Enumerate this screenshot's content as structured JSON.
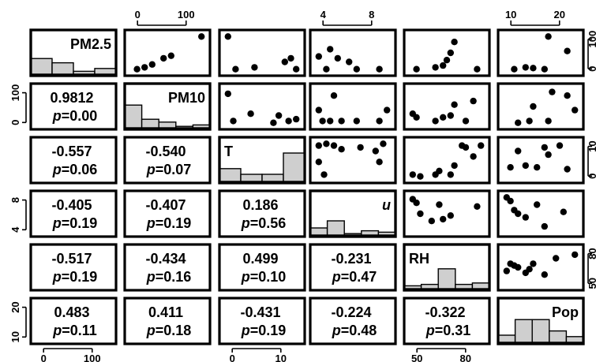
{
  "chart_data": {
    "type": "scatter-matrix",
    "variables": [
      "PM2.5",
      "PM10",
      "T",
      "u",
      "RH",
      "Pop"
    ],
    "variable_label_styles": {
      "u": "italic"
    },
    "correlations": [
      {
        "row": "PM10",
        "col": "PM2.5",
        "r": "0.9812",
        "p": "0.00"
      },
      {
        "row": "T",
        "col": "PM2.5",
        "r": "-0.557",
        "p": "0.06"
      },
      {
        "row": "T",
        "col": "PM10",
        "r": "-0.540",
        "p": "0.07"
      },
      {
        "row": "u",
        "col": "PM2.5",
        "r": "-0.405",
        "p": "0.19"
      },
      {
        "row": "u",
        "col": "PM10",
        "r": "-0.407",
        "p": "0.19"
      },
      {
        "row": "u",
        "col": "T",
        "r": "0.186",
        "p": "0.56"
      },
      {
        "row": "RH",
        "col": "PM2.5",
        "r": "-0.517",
        "p": "0.19"
      },
      {
        "row": "RH",
        "col": "PM10",
        "r": "-0.434",
        "p": "0.16"
      },
      {
        "row": "RH",
        "col": "T",
        "r": "0.499",
        "p": "0.10"
      },
      {
        "row": "RH",
        "col": "u",
        "r": "-0.231",
        "p": "0.47"
      },
      {
        "row": "Pop",
        "col": "PM2.5",
        "r": "0.483",
        "p": "0.11"
      },
      {
        "row": "Pop",
        "col": "PM10",
        "r": "0.411",
        "p": "0.18"
      },
      {
        "row": "Pop",
        "col": "T",
        "r": "-0.431",
        "p": "0.19"
      },
      {
        "row": "Pop",
        "col": "u",
        "r": "-0.224",
        "p": "0.48"
      },
      {
        "row": "Pop",
        "col": "RH",
        "r": "-0.322",
        "p": "0.31"
      }
    ],
    "p_prefix": "p",
    "histograms": {
      "PM2.5": [
        0.55,
        0.4,
        0.1,
        0.2
      ],
      "PM10": [
        0.8,
        0.3,
        0.2,
        0.05,
        0.1
      ],
      "T": [
        0.45,
        0.25,
        0.25,
        1.0
      ],
      "u": [
        0.25,
        0.5,
        0.05,
        0.15,
        0.1
      ],
      "RH": [
        0.1,
        0.15,
        0.7,
        0.15,
        0.2
      ],
      "Pop": [
        0.25,
        0.8,
        0.8,
        0.4,
        0.2
      ]
    },
    "scatter": {
      "PM2.5|PM10": [
        [
          0.1,
          0.05
        ],
        [
          0.2,
          0.1
        ],
        [
          0.3,
          0.18
        ],
        [
          0.45,
          0.35
        ],
        [
          0.55,
          0.42
        ],
        [
          0.95,
          0.95
        ]
      ],
      "PM2.5|T": [
        [
          0.05,
          0.95
        ],
        [
          0.15,
          0.05
        ],
        [
          0.4,
          0.1
        ],
        [
          0.8,
          0.25
        ],
        [
          0.88,
          0.35
        ],
        [
          0.95,
          0.05
        ]
      ],
      "PM2.5|u": [
        [
          0.05,
          0.4
        ],
        [
          0.15,
          0.05
        ],
        [
          0.2,
          0.6
        ],
        [
          0.3,
          0.35
        ],
        [
          0.45,
          0.25
        ],
        [
          0.55,
          0.05
        ],
        [
          0.85,
          0.05
        ]
      ],
      "PM2.5|RH": [
        [
          0.1,
          0.05
        ],
        [
          0.35,
          0.1
        ],
        [
          0.45,
          0.15
        ],
        [
          0.5,
          0.3
        ],
        [
          0.55,
          0.5
        ],
        [
          0.6,
          0.8
        ],
        [
          0.9,
          0.05
        ]
      ],
      "PM2.5|Pop": [
        [
          0.15,
          0.05
        ],
        [
          0.3,
          0.1
        ],
        [
          0.4,
          0.08
        ],
        [
          0.55,
          0.05
        ],
        [
          0.6,
          0.95
        ],
        [
          0.85,
          0.55
        ]
      ],
      "PM10|T": [
        [
          0.05,
          0.85
        ],
        [
          0.12,
          0.1
        ],
        [
          0.35,
          0.3
        ],
        [
          0.65,
          0.05
        ],
        [
          0.72,
          0.25
        ],
        [
          0.85,
          0.1
        ],
        [
          0.95,
          0.15
        ]
      ],
      "PM10|u": [
        [
          0.05,
          0.4
        ],
        [
          0.1,
          0.1
        ],
        [
          0.2,
          0.1
        ],
        [
          0.25,
          0.8
        ],
        [
          0.35,
          0.1
        ],
        [
          0.55,
          0.1
        ],
        [
          0.85,
          0.1
        ],
        [
          0.95,
          0.4
        ]
      ],
      "PM10|RH": [
        [
          0.05,
          0.3
        ],
        [
          0.1,
          0.2
        ],
        [
          0.35,
          0.1
        ],
        [
          0.45,
          0.2
        ],
        [
          0.55,
          0.25
        ],
        [
          0.6,
          0.55
        ],
        [
          0.75,
          0.1
        ],
        [
          0.85,
          0.65
        ]
      ],
      "PM10|Pop": [
        [
          0.2,
          0.05
        ],
        [
          0.35,
          0.1
        ],
        [
          0.4,
          0.5
        ],
        [
          0.6,
          0.1
        ],
        [
          0.65,
          0.9
        ],
        [
          0.85,
          0.8
        ],
        [
          0.95,
          0.4
        ]
      ],
      "T|u": [
        [
          0.05,
          0.9
        ],
        [
          0.05,
          0.45
        ],
        [
          0.12,
          0.1
        ],
        [
          0.15,
          0.95
        ],
        [
          0.25,
          0.9
        ],
        [
          0.35,
          0.8
        ],
        [
          0.6,
          0.85
        ],
        [
          0.8,
          0.75
        ],
        [
          0.85,
          0.45
        ],
        [
          0.9,
          0.95
        ]
      ],
      "T|RH": [
        [
          0.05,
          0.1
        ],
        [
          0.15,
          0.05
        ],
        [
          0.35,
          0.1
        ],
        [
          0.4,
          0.2
        ],
        [
          0.55,
          0.1
        ],
        [
          0.6,
          0.35
        ],
        [
          0.7,
          0.9
        ],
        [
          0.75,
          0.85
        ],
        [
          0.85,
          0.6
        ],
        [
          0.95,
          0.9
        ]
      ],
      "T|Pop": [
        [
          0.1,
          0.3
        ],
        [
          0.2,
          0.75
        ],
        [
          0.3,
          0.35
        ],
        [
          0.45,
          0.3
        ],
        [
          0.55,
          0.85
        ],
        [
          0.6,
          0.65
        ],
        [
          0.75,
          0.9
        ],
        [
          0.85,
          0.25
        ]
      ],
      "u|RH": [
        [
          0.05,
          0.9
        ],
        [
          0.1,
          0.8
        ],
        [
          0.15,
          0.5
        ],
        [
          0.3,
          0.3
        ],
        [
          0.4,
          0.75
        ],
        [
          0.45,
          0.35
        ],
        [
          0.55,
          0.45
        ],
        [
          0.9,
          0.7
        ]
      ],
      "u|Pop": [
        [
          0.05,
          0.95
        ],
        [
          0.1,
          0.85
        ],
        [
          0.15,
          0.6
        ],
        [
          0.2,
          0.5
        ],
        [
          0.3,
          0.4
        ],
        [
          0.45,
          0.75
        ],
        [
          0.55,
          0.15
        ],
        [
          0.8,
          0.55
        ]
      ],
      "RH|Pop": [
        [
          0.05,
          0.4
        ],
        [
          0.1,
          0.6
        ],
        [
          0.15,
          0.55
        ],
        [
          0.2,
          0.5
        ],
        [
          0.3,
          0.35
        ],
        [
          0.35,
          0.45
        ],
        [
          0.4,
          0.6
        ],
        [
          0.55,
          0.3
        ],
        [
          0.7,
          0.75
        ],
        [
          0.95,
          0.85
        ]
      ]
    },
    "axes": {
      "top": [
        {
          "col": "PM10",
          "ticks": [
            "0",
            "100"
          ]
        },
        {
          "col": "u",
          "ticks": [
            "4",
            "8"
          ]
        },
        {
          "col": "Pop",
          "ticks": [
            "10",
            "20"
          ]
        }
      ],
      "bottom": [
        {
          "col": "PM2.5",
          "ticks": [
            "0",
            "100"
          ]
        },
        {
          "col": "T",
          "ticks": [
            "0",
            "10"
          ]
        },
        {
          "col": "RH",
          "ticks": [
            "50",
            "80"
          ]
        }
      ],
      "left": [
        {
          "row": "PM10",
          "ticks": [
            "0",
            "100"
          ]
        },
        {
          "row": "u",
          "ticks": [
            "4",
            "8"
          ]
        },
        {
          "row": "Pop",
          "ticks": [
            "10",
            "20"
          ]
        }
      ],
      "right": [
        {
          "row": "PM2.5",
          "ticks": [
            "0",
            "100"
          ]
        },
        {
          "row": "T",
          "ticks": [
            "0",
            "10"
          ]
        },
        {
          "row": "RH",
          "ticks": [
            "50",
            "80"
          ]
        }
      ]
    },
    "histogram_color": "#cfcfcf"
  }
}
